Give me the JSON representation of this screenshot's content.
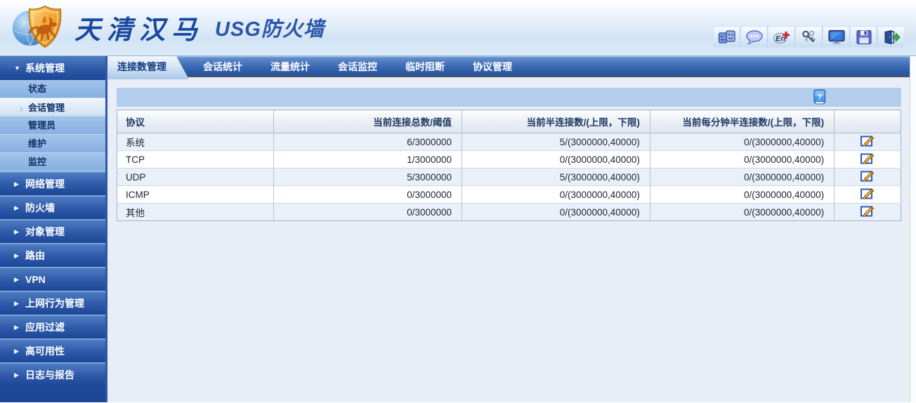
{
  "header": {
    "brand": "天清汉马",
    "product": "USG防火墙",
    "toolbar_icons": [
      {
        "name": "id-card-icon"
      },
      {
        "name": "message-icon"
      },
      {
        "name": "language-en-icon"
      },
      {
        "name": "keys-icon"
      },
      {
        "name": "monitor-icon"
      },
      {
        "name": "save-icon"
      },
      {
        "name": "logout-icon"
      }
    ]
  },
  "tabs": [
    {
      "label": "连接数管理",
      "active": true
    },
    {
      "label": "会话统计",
      "active": false
    },
    {
      "label": "流量统计",
      "active": false
    },
    {
      "label": "会话监控",
      "active": false
    },
    {
      "label": "临时阻断",
      "active": false
    },
    {
      "label": "协议管理",
      "active": false
    }
  ],
  "sidebar": {
    "groups": [
      {
        "label": "系统管理",
        "expanded": true,
        "children": [
          {
            "label": "状态",
            "selected": false
          },
          {
            "label": "会话管理",
            "selected": true
          },
          {
            "label": "管理员",
            "selected": false
          },
          {
            "label": "维护",
            "selected": false
          },
          {
            "label": "监控",
            "selected": false
          }
        ]
      },
      {
        "label": "网络管理",
        "expanded": false,
        "children": []
      },
      {
        "label": "防火墙",
        "expanded": false,
        "children": []
      },
      {
        "label": "对象管理",
        "expanded": false,
        "children": []
      },
      {
        "label": "路由",
        "expanded": false,
        "children": []
      },
      {
        "label": "VPN",
        "expanded": false,
        "children": []
      },
      {
        "label": "上网行为管理",
        "expanded": false,
        "children": []
      },
      {
        "label": "应用过滤",
        "expanded": false,
        "children": []
      },
      {
        "label": "高可用性",
        "expanded": false,
        "children": []
      },
      {
        "label": "日志与报告",
        "expanded": false,
        "children": []
      }
    ]
  },
  "content": {
    "help_icon": "help-book-icon",
    "table": {
      "columns": [
        "协议",
        "当前连接总数/阈值",
        "当前半连接数/(上限，下限)",
        "当前每分钟半连接数/(上限，下限)",
        ""
      ],
      "rows": [
        {
          "protocol": "系统",
          "total": "6/3000000",
          "half": "5/(3000000,40000)",
          "half_per_min": "0/(3000000,40000)"
        },
        {
          "protocol": "TCP",
          "total": "1/3000000",
          "half": "0/(3000000,40000)",
          "half_per_min": "0/(3000000,40000)"
        },
        {
          "protocol": "UDP",
          "total": "5/3000000",
          "half": "5/(3000000,40000)",
          "half_per_min": "0/(3000000,40000)"
        },
        {
          "protocol": "ICMP",
          "total": "0/3000000",
          "half": "0/(3000000,40000)",
          "half_per_min": "0/(3000000,40000)"
        },
        {
          "protocol": "其他",
          "total": "0/3000000",
          "half": "0/(3000000,40000)",
          "half_per_min": "0/(3000000,40000)"
        }
      ]
    }
  },
  "colors": {
    "accent_dark_blue": "#1c4796",
    "tab_bar_bottom": "#26539f",
    "active_tab_text": "#123c7e",
    "band_blue": "#b2ceec",
    "row_alt": "#e9f0f9",
    "table_header_text": "#1f3864",
    "shield_gold": "#f2a93b",
    "horse_orange": "#c05f12"
  }
}
